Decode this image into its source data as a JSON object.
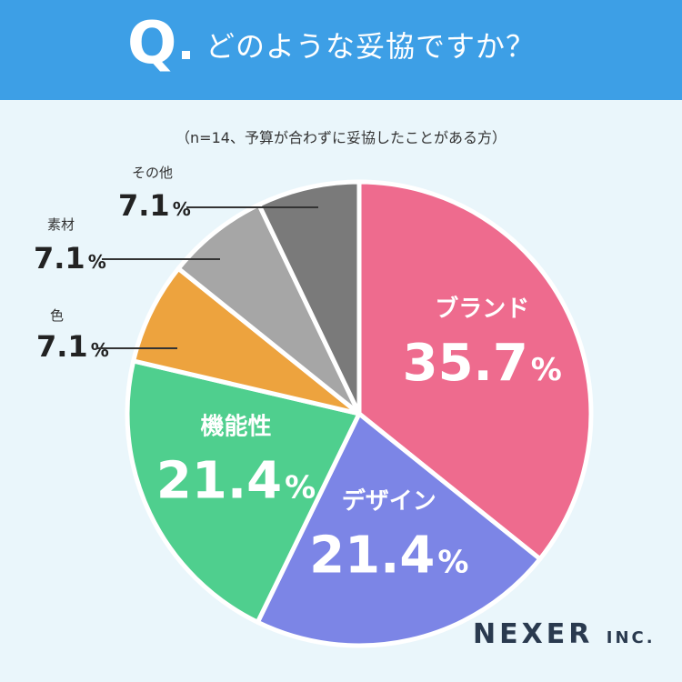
{
  "header": {
    "q_mark": "Q",
    "question": "どのような妥協ですか？"
  },
  "note": "（n=14、予算が合わずに妥協したことがある方）",
  "brand": {
    "name": "NEXER",
    "suffix": "INC."
  },
  "colors": {
    "header_bg": "#3d9fe6",
    "background": "#eaf6fb"
  },
  "chart_data": {
    "type": "pie",
    "title": "",
    "unit": "%",
    "categories": [
      "ブランド",
      "デザイン",
      "機能性",
      "色",
      "素材",
      "その他"
    ],
    "values": [
      35.7,
      21.4,
      21.4,
      7.1,
      7.1,
      7.1
    ],
    "value_labels": [
      "35.7",
      "21.4",
      "21.4",
      "7.1",
      "7.1",
      "7.1"
    ],
    "colors": [
      "#ee6b8e",
      "#7c85e6",
      "#4fcf8e",
      "#eda33e",
      "#a6a6a6",
      "#7a7a7a"
    ],
    "start_angle_deg": 0,
    "direction": "clockwise"
  }
}
